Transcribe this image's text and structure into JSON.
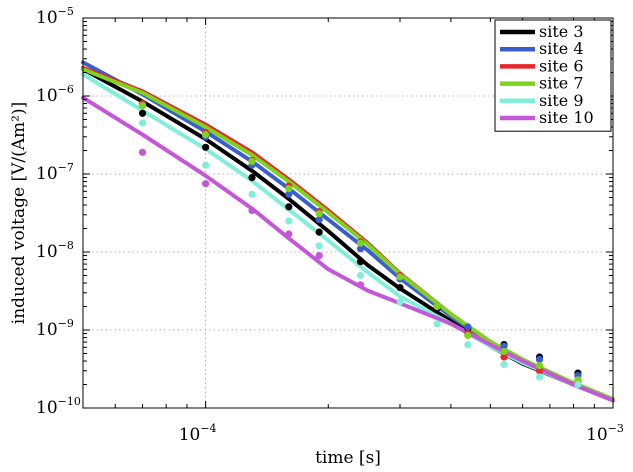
{
  "chart_data": {
    "type": "line",
    "title": "",
    "xlabel": "time [s]",
    "ylabel": "induced voltage [V/(Am²)]",
    "x_scale": "log",
    "y_scale": "log",
    "xlim": [
      5e-05,
      0.001
    ],
    "ylim": [
      1e-10,
      1e-05
    ],
    "grid": true,
    "legend_position": "top-right",
    "x_ticks": [
      {
        "value": 0.0001,
        "label": "10",
        "exp": "−4"
      },
      {
        "value": 0.001,
        "label": "10",
        "exp": "−3"
      }
    ],
    "y_ticks": [
      {
        "value": 1e-05,
        "label": "10",
        "exp": "−5"
      },
      {
        "value": 1e-06,
        "label": "10",
        "exp": "−6"
      },
      {
        "value": 1e-07,
        "label": "10",
        "exp": "−7"
      },
      {
        "value": 1e-08,
        "label": "10",
        "exp": "−8"
      },
      {
        "value": 1e-09,
        "label": "10",
        "exp": "−9"
      },
      {
        "value": 1e-10,
        "label": "10",
        "exp": "−10"
      }
    ],
    "series": [
      {
        "name": "site 3",
        "color": "#000000",
        "curve": {
          "x": [
            5e-05,
            7e-05,
            0.0001,
            0.00013,
            0.00016,
            0.0002,
            0.00025,
            0.0003,
            0.0004,
            0.0005,
            0.0006,
            0.0008,
            0.001
          ],
          "y": [
            2.2e-06,
            8.5e-07,
            2.8e-07,
            1.1e-07,
            4.8e-08,
            1.85e-08,
            6.8e-09,
            3.4e-09,
            1.3e-09,
            6.2e-10,
            3.7e-10,
            2e-10,
            1.25e-10
          ]
        },
        "points": {
          "x": [
            7e-05,
            0.0001,
            0.00013,
            0.00016,
            0.00019,
            0.00024,
            0.0003,
            0.00037,
            0.00044,
            0.00054,
            0.00066,
            0.00082
          ],
          "y": [
            6e-07,
            2.2e-07,
            9e-08,
            3.8e-08,
            1.8e-08,
            7.5e-09,
            3.5e-09,
            1.9e-09,
            1.05e-09,
            6.5e-10,
            4.5e-10,
            2.8e-10
          ]
        }
      },
      {
        "name": "site 4",
        "color": "#3a5fcd",
        "curve": {
          "x": [
            5e-05,
            7e-05,
            0.0001,
            0.00013,
            0.00016,
            0.0002,
            0.00025,
            0.0003,
            0.0004,
            0.0005,
            0.0006,
            0.0008,
            0.001
          ],
          "y": [
            2.7e-06,
            1.05e-06,
            3.5e-07,
            1.45e-07,
            6.5e-08,
            2.6e-08,
            1.05e-08,
            4.6e-09,
            1.5e-09,
            6.8e-10,
            4e-10,
            2e-10,
            1.25e-10
          ]
        },
        "points": {
          "x": [
            7e-05,
            0.0001,
            0.00013,
            0.00016,
            0.00019,
            0.00024,
            0.0003,
            0.00037,
            0.00044,
            0.00054,
            0.00066,
            0.00082
          ],
          "y": [
            7.5e-07,
            3e-07,
            1.3e-07,
            5.5e-08,
            2.6e-08,
            1.1e-08,
            4.5e-09,
            2e-09,
            1.1e-09,
            6.2e-10,
            4.2e-10,
            2.6e-10
          ]
        }
      },
      {
        "name": "site 6",
        "color": "#e8272b",
        "curve": {
          "x": [
            5e-05,
            7e-05,
            0.0001,
            0.00013,
            0.00016,
            0.0002,
            0.00025,
            0.0003,
            0.0004,
            0.0005,
            0.0006,
            0.0008,
            0.001
          ],
          "y": [
            2.3e-06,
            1.15e-06,
            4.3e-07,
            1.9e-07,
            8.5e-08,
            3.4e-08,
            1.3e-08,
            5.3e-09,
            1.6e-09,
            7e-10,
            4.1e-10,
            2.05e-10,
            1.28e-10
          ]
        },
        "points": {
          "x": [
            7e-05,
            0.0001,
            0.00013,
            0.00016,
            0.00019,
            0.00024,
            0.0003,
            0.00037,
            0.00044,
            0.00054,
            0.00066,
            0.00082
          ],
          "y": [
            8e-07,
            3.4e-07,
            1.5e-07,
            7e-08,
            3.3e-08,
            1.35e-08,
            5e-09,
            2e-09,
            9e-10,
            4.5e-10,
            3e-10,
            2.2e-10
          ]
        }
      },
      {
        "name": "site 7",
        "color": "#7ed321",
        "curve": {
          "x": [
            5e-05,
            7e-05,
            0.0001,
            0.00013,
            0.00016,
            0.0002,
            0.00025,
            0.0003,
            0.0004,
            0.0005,
            0.0006,
            0.0008,
            0.001
          ],
          "y": [
            2.2e-06,
            1.1e-06,
            4e-07,
            1.75e-07,
            8e-08,
            3.2e-08,
            1.25e-08,
            5.2e-09,
            1.6e-09,
            7.1e-10,
            4.2e-10,
            2.1e-10,
            1.3e-10
          ]
        },
        "points": {
          "x": [
            7e-05,
            0.0001,
            0.00013,
            0.00016,
            0.00019,
            0.00024,
            0.0003,
            0.00037,
            0.00044,
            0.00054,
            0.00066,
            0.00082
          ],
          "y": [
            7.5e-07,
            3.2e-07,
            1.45e-07,
            6.5e-08,
            3.1e-08,
            1.3e-08,
            4.8e-09,
            2e-09,
            8.5e-10,
            5.3e-10,
            3.5e-10,
            2.3e-10
          ]
        }
      },
      {
        "name": "site 9",
        "color": "#80eed8",
        "curve": {
          "x": [
            5e-05,
            7e-05,
            0.0001,
            0.00013,
            0.00016,
            0.0002,
            0.00025,
            0.0003,
            0.0004,
            0.0005,
            0.0006,
            0.0008,
            0.001
          ],
          "y": [
            1.9e-06,
            6.5e-07,
            2.1e-07,
            8.2e-08,
            3.5e-08,
            1.4e-08,
            5.5e-09,
            2.7e-09,
            1.2e-09,
            6.2e-10,
            3.8e-10,
            2e-10,
            1.25e-10
          ]
        },
        "points": {
          "x": [
            7e-05,
            0.0001,
            0.00013,
            0.00016,
            0.00019,
            0.00024,
            0.0003,
            0.00037,
            0.00044,
            0.00054,
            0.00066,
            0.00082
          ],
          "y": [
            4.5e-07,
            1.3e-07,
            5.5e-08,
            2.5e-08,
            1.2e-08,
            5e-09,
            2.3e-09,
            1.2e-09,
            6.5e-10,
            3.6e-10,
            2.5e-10,
            2e-10
          ]
        }
      },
      {
        "name": "site 10",
        "color": "#c457d8",
        "curve": {
          "x": [
            5e-05,
            7e-05,
            0.0001,
            0.00013,
            0.00016,
            0.0002,
            0.00025,
            0.0003,
            0.0004,
            0.0005,
            0.0006,
            0.0008,
            0.001
          ],
          "y": [
            9.5e-07,
            3.2e-07,
            9.5e-08,
            3.6e-08,
            1.5e-08,
            6e-09,
            3.2e-09,
            2.2e-09,
            1.2e-09,
            6.5e-10,
            4e-10,
            2e-10,
            1.25e-10
          ]
        },
        "points": {
          "x": [
            7e-05,
            0.0001,
            0.00013,
            0.00016,
            0.00019,
            0.00024
          ],
          "y": [
            1.9e-07,
            7.5e-08,
            3.4e-08,
            1.7e-08,
            9e-09,
            3.8e-09
          ]
        }
      }
    ]
  }
}
